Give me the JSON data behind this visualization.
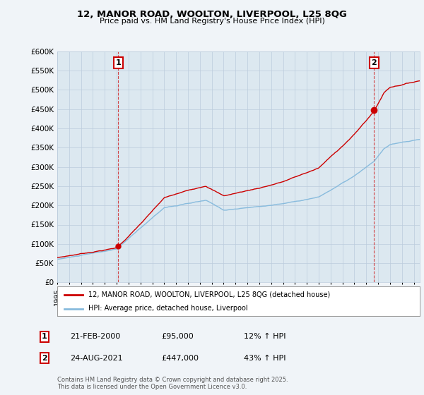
{
  "title": "12, MANOR ROAD, WOOLTON, LIVERPOOL, L25 8QG",
  "subtitle": "Price paid vs. HM Land Registry's House Price Index (HPI)",
  "ylim": [
    0,
    600000
  ],
  "yticks": [
    0,
    50000,
    100000,
    150000,
    200000,
    250000,
    300000,
    350000,
    400000,
    450000,
    500000,
    550000,
    600000
  ],
  "xlim_start": 1995.0,
  "xlim_end": 2025.5,
  "sale1_date": 2000.13,
  "sale1_price": 95000,
  "sale1_label": "1",
  "sale2_date": 2021.65,
  "sale2_price": 447000,
  "sale2_label": "2",
  "annotation1_date": "21-FEB-2000",
  "annotation1_price": "£95,000",
  "annotation1_hpi": "12% ↑ HPI",
  "annotation2_date": "24-AUG-2021",
  "annotation2_price": "£447,000",
  "annotation2_hpi": "43% ↑ HPI",
  "legend_label_red": "12, MANOR ROAD, WOOLTON, LIVERPOOL, L25 8QG (detached house)",
  "legend_label_blue": "HPI: Average price, detached house, Liverpool",
  "footer": "Contains HM Land Registry data © Crown copyright and database right 2025.\nThis data is licensed under the Open Government Licence v3.0.",
  "red_color": "#cc0000",
  "blue_color": "#88bbdd",
  "vline_color": "#cc0000",
  "background_color": "#f0f4f8",
  "plot_bg": "#dce8f0",
  "grid_color": "#bbccdd"
}
